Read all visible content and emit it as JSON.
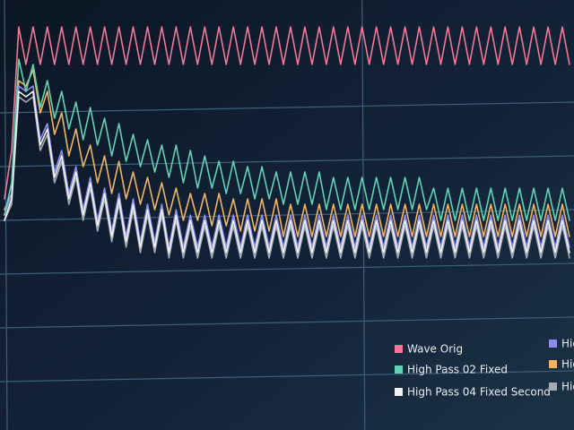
{
  "chart_data": {
    "type": "line",
    "xlim": [
      0,
      79
    ],
    "xticks": [
      0,
      50
    ],
    "ylim": [
      -1,
      7
    ],
    "yticks": [
      0,
      1,
      2,
      3,
      4,
      5
    ],
    "grid": true,
    "legend": "lower right",
    "series": [
      {
        "name": "Wave Orig",
        "color": "#f27894",
        "values": [
          3.3,
          4.2,
          6.5,
          5.8,
          6.5,
          5.8,
          6.5,
          5.8,
          6.5,
          5.8,
          6.5,
          5.8,
          6.5,
          5.8,
          6.5,
          5.8,
          6.5,
          5.8,
          6.5,
          5.8,
          6.5,
          5.8,
          6.5,
          5.8,
          6.5,
          5.8,
          6.5,
          5.8,
          6.5,
          5.8,
          6.5,
          5.8,
          6.5,
          5.8,
          6.5,
          5.8,
          6.5,
          5.8,
          6.5,
          5.8,
          6.5,
          5.8,
          6.5,
          5.8,
          6.5,
          5.8,
          6.5,
          5.8,
          6.5,
          5.8,
          6.5,
          5.8,
          6.5,
          5.8,
          6.5,
          5.8,
          6.5,
          5.8,
          6.5,
          5.8,
          6.5,
          5.8,
          6.5,
          5.8,
          6.5,
          5.8,
          6.5,
          5.8,
          6.5,
          5.8,
          6.5,
          5.8,
          6.5,
          5.8,
          6.5,
          5.8,
          6.5,
          5.8,
          6.5,
          5.8
        ]
      },
      {
        "name": "High Pass 02 Fixed",
        "color": "#62d2b4",
        "values": [
          3.0,
          3.6,
          5.9,
          5.3,
          5.8,
          5.0,
          5.5,
          4.8,
          5.3,
          4.6,
          5.1,
          4.4,
          5.0,
          4.3,
          4.8,
          4.1,
          4.7,
          4.0,
          4.5,
          3.9,
          4.4,
          3.8,
          4.3,
          3.7,
          4.3,
          3.6,
          4.2,
          3.5,
          4.1,
          3.5,
          4.0,
          3.4,
          4.0,
          3.4,
          3.9,
          3.3,
          3.9,
          3.3,
          3.8,
          3.2,
          3.8,
          3.2,
          3.8,
          3.2,
          3.8,
          3.1,
          3.7,
          3.1,
          3.7,
          3.1,
          3.7,
          3.1,
          3.7,
          3.1,
          3.7,
          3.1,
          3.7,
          3.1,
          3.7,
          3.1,
          3.5,
          2.9,
          3.5,
          2.9,
          3.5,
          2.9,
          3.5,
          2.9,
          3.5,
          2.9,
          3.5,
          2.9,
          3.5,
          2.9,
          3.5,
          2.9,
          3.5,
          2.9,
          3.5,
          2.9
        ]
      },
      {
        "name": "High Pass 04 Fixed Second",
        "color": "#f2f2f2",
        "values": [
          2.9,
          3.3,
          5.3,
          5.2,
          5.3,
          4.3,
          4.6,
          3.7,
          4.1,
          3.3,
          3.8,
          3.0,
          3.6,
          2.8,
          3.4,
          2.6,
          3.3,
          2.5,
          3.2,
          2.4,
          3.1,
          2.4,
          3.1,
          2.3,
          3.0,
          2.3,
          2.9,
          2.3,
          2.9,
          2.3,
          2.9,
          2.3,
          2.9,
          2.3,
          2.9,
          2.3,
          2.9,
          2.3,
          2.9,
          2.3,
          2.9,
          2.3,
          2.9,
          2.3,
          2.9,
          2.3,
          2.9,
          2.3,
          2.9,
          2.3,
          2.9,
          2.3,
          2.9,
          2.3,
          2.9,
          2.3,
          2.9,
          2.3,
          2.9,
          2.3,
          2.9,
          2.3,
          2.9,
          2.3,
          2.9,
          2.3,
          2.9,
          2.3,
          2.9,
          2.3,
          2.9,
          2.3,
          2.9,
          2.3,
          2.9,
          2.3,
          2.9,
          2.3,
          2.9,
          2.3
        ]
      },
      {
        "name": "Hig",
        "color": "#8e8ef2",
        "values": [
          3.0,
          3.4,
          5.4,
          5.3,
          5.4,
          4.4,
          4.7,
          3.8,
          4.2,
          3.4,
          3.9,
          3.1,
          3.7,
          2.9,
          3.5,
          2.7,
          3.4,
          2.6,
          3.3,
          2.5,
          3.2,
          2.5,
          3.2,
          2.4,
          3.1,
          2.4,
          3.0,
          2.4,
          3.0,
          2.4,
          3.0,
          2.4,
          3.0,
          2.4,
          3.0,
          2.4,
          3.0,
          2.4,
          3.0,
          2.4,
          3.0,
          2.4,
          3.0,
          2.4,
          3.0,
          2.4,
          3.0,
          2.4,
          3.0,
          2.4,
          3.0,
          2.4,
          3.0,
          2.4,
          3.0,
          2.4,
          3.0,
          2.4,
          3.0,
          2.4,
          3.0,
          2.4,
          3.0,
          2.4,
          3.0,
          2.4,
          3.0,
          2.4,
          3.0,
          2.4,
          3.0,
          2.4,
          3.0,
          2.4,
          3.0,
          2.4,
          3.0,
          2.4,
          3.0,
          2.4
        ]
      },
      {
        "name": "Hig",
        "color": "#f2b462",
        "values": [
          3.1,
          3.4,
          5.5,
          5.4,
          5.7,
          4.9,
          5.3,
          4.5,
          4.9,
          4.1,
          4.6,
          3.9,
          4.3,
          3.6,
          4.1,
          3.4,
          4.0,
          3.3,
          3.8,
          3.2,
          3.7,
          3.1,
          3.6,
          3.0,
          3.5,
          2.9,
          3.4,
          2.9,
          3.4,
          2.8,
          3.4,
          2.8,
          3.3,
          2.7,
          3.3,
          2.7,
          3.3,
          2.7,
          3.3,
          2.6,
          3.2,
          2.6,
          3.2,
          2.6,
          3.2,
          2.6,
          3.2,
          2.6,
          3.2,
          2.6,
          3.2,
          2.6,
          3.2,
          2.6,
          3.2,
          2.6,
          3.2,
          2.6,
          3.2,
          2.6,
          3.2,
          2.6,
          3.2,
          2.6,
          3.2,
          2.6,
          3.2,
          2.6,
          3.2,
          2.6,
          3.2,
          2.6,
          3.2,
          2.6,
          3.2,
          2.6,
          3.2,
          2.6,
          3.2,
          2.6
        ]
      },
      {
        "name": "Hig",
        "color": "#a4acb4",
        "values": [
          2.9,
          3.2,
          5.2,
          5.1,
          5.2,
          4.2,
          4.5,
          3.6,
          4.0,
          3.2,
          3.7,
          2.9,
          3.5,
          2.7,
          3.3,
          2.5,
          3.2,
          2.4,
          3.1,
          2.3,
          3.0,
          2.3,
          3.0,
          2.2,
          2.9,
          2.2,
          2.8,
          2.2,
          2.8,
          2.2,
          2.8,
          2.2,
          2.8,
          2.2,
          2.8,
          2.2,
          2.8,
          2.2,
          2.8,
          2.2,
          2.8,
          2.2,
          2.8,
          2.2,
          2.8,
          2.2,
          2.8,
          2.2,
          2.8,
          2.2,
          2.8,
          2.2,
          2.8,
          2.2,
          2.8,
          2.2,
          2.8,
          2.2,
          2.8,
          2.2,
          2.8,
          2.2,
          2.8,
          2.2,
          2.8,
          2.2,
          2.8,
          2.2,
          2.8,
          2.2,
          2.8,
          2.2,
          2.8,
          2.2,
          2.8,
          2.2,
          2.8,
          2.2,
          2.8,
          2.2
        ]
      }
    ]
  }
}
